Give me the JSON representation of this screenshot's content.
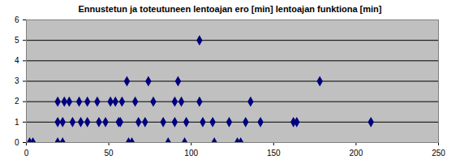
{
  "chart_data": {
    "type": "scatter",
    "title": "Ennustetun ja toteutuneen lentoajan ero [min] lentoajan funktiona [min]",
    "x": [
      2,
      4,
      19,
      22,
      62,
      64,
      86,
      96,
      114,
      128,
      130,
      19,
      22,
      28,
      33,
      37,
      44,
      48,
      56,
      57,
      68,
      72,
      83,
      90,
      97,
      107,
      113,
      123,
      133,
      142,
      162,
      164,
      209,
      19,
      23,
      26,
      32,
      37,
      43,
      51,
      54,
      58,
      66,
      77,
      90,
      94,
      105,
      136,
      61,
      74,
      92,
      178,
      105
    ],
    "values": [
      0,
      0,
      0,
      0,
      0,
      0,
      0,
      0,
      0,
      0,
      0,
      1,
      1,
      1,
      1,
      1,
      1,
      1,
      1,
      1,
      1,
      1,
      1,
      1,
      1,
      1,
      1,
      1,
      1,
      1,
      1,
      1,
      1,
      2,
      2,
      2,
      2,
      2,
      2,
      2,
      2,
      2,
      2,
      2,
      2,
      2,
      2,
      2,
      3,
      3,
      3,
      3,
      5
    ],
    "color": "#000080",
    "marker": "diamond",
    "xlim": [
      0,
      250
    ],
    "xticks": [
      0,
      50,
      100,
      150,
      200,
      250
    ],
    "ylim": [
      0,
      6
    ],
    "yticks": [
      0,
      1,
      2,
      3,
      4,
      5,
      6
    ],
    "grid": true
  }
}
